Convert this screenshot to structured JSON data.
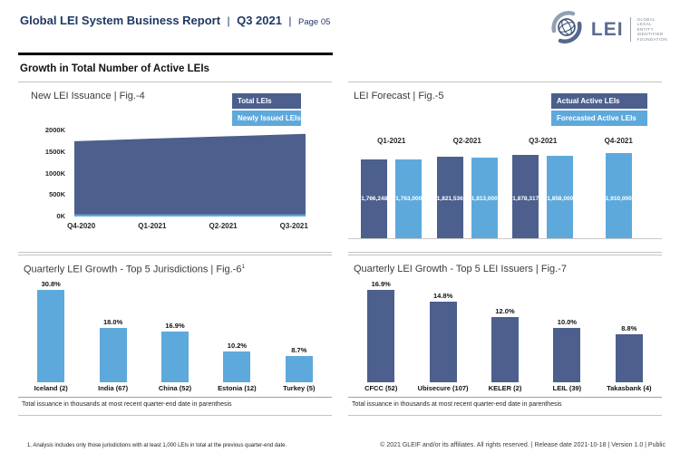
{
  "header": {
    "title": "Global LEI System Business Report",
    "separator": "|",
    "quarter": "Q3 2021",
    "page_label": "Page 05"
  },
  "logo": {
    "lei_text": "LEI",
    "caption": [
      "GLOBAL",
      "LEGAL",
      "ENTITY",
      "IDENTIFIER",
      "FOUNDATION"
    ]
  },
  "section_title": "Growth in Total Number of Active LEIs",
  "colors": {
    "navy_text": "#1F3864",
    "dark_blue": "#4C5F8D",
    "light_blue": "#5EA9DC"
  },
  "chart_data": [
    {
      "id": "fig4",
      "type": "area",
      "title": "New LEI Issuance | Fig.-4",
      "legend": [
        {
          "label": "Total LEIs",
          "color": "#4C5F8D"
        },
        {
          "label": "Newly Issued LEIs",
          "color": "#5EA9DC"
        }
      ],
      "x": [
        "Q4-2020",
        "Q1-2021",
        "Q2-2021",
        "Q3-2021"
      ],
      "series": [
        {
          "name": "Total LEIs",
          "values_k": [
            1750,
            1810,
            1865,
            1920
          ]
        },
        {
          "name": "Newly Issued LEIs",
          "values_k": [
            50,
            50,
            50,
            50
          ]
        }
      ],
      "yticks": [
        "2000K",
        "1500K",
        "1000K",
        "500K",
        "0K"
      ],
      "ylim_k": [
        0,
        2000
      ],
      "grid": false,
      "legend_position": "top-right"
    },
    {
      "id": "fig5",
      "type": "bar",
      "title": "LEI Forecast | Fig.-5",
      "legend": [
        {
          "label": "Actual Active LEIs",
          "color": "#4C5F8D"
        },
        {
          "label": "Forecasted Active LEIs",
          "color": "#5EA9DC"
        }
      ],
      "categories": [
        "Q1-2021",
        "Q2-2021",
        "Q3-2021",
        "Q4-2021"
      ],
      "series": [
        {
          "name": "Actual Active LEIs",
          "values": [
            1766248,
            1821536,
            1878317,
            null
          ],
          "labels": [
            "1,766,248",
            "1,821,536",
            "1,878,317",
            null
          ]
        },
        {
          "name": "Forecasted Active LEIs",
          "values": [
            1763000,
            1813000,
            1858000,
            1910000
          ],
          "labels": [
            "1,763,000",
            "1,813,000",
            "1,858,000",
            "1,910,000"
          ]
        }
      ],
      "ylim": [
        0,
        1950000
      ],
      "grid": false,
      "legend_position": "top-right"
    },
    {
      "id": "fig6",
      "type": "bar",
      "title": "Quarterly LEI Growth - Top 5 Jurisdictions | Fig.-6",
      "title_sup": "1",
      "bar_color": "#5EA9DC",
      "categories": [
        "Iceland (2)",
        "India (67)",
        "China (52)",
        "Estonia (12)",
        "Turkey (5)"
      ],
      "values_percent": [
        30.8,
        18.0,
        16.9,
        10.2,
        8.7
      ],
      "labels": [
        "30.8%",
        "18.0%",
        "16.9%",
        "10.2%",
        "8.7%"
      ],
      "note": "Total issuance in thousands at most recent quarter-end date in parenthesis",
      "grid": false
    },
    {
      "id": "fig7",
      "type": "bar",
      "title": "Quarterly LEI Growth - Top 5 LEI Issuers | Fig.-7",
      "bar_color": "#4C5F8D",
      "categories": [
        "CFCC (52)",
        "Ubisecure (107)",
        "KELER (2)",
        "LEIL (39)",
        "Takasbank (4)"
      ],
      "values_percent": [
        16.9,
        14.8,
        12.0,
        10.0,
        8.8
      ],
      "labels": [
        "16.9%",
        "14.8%",
        "12.0%",
        "10.0%",
        "8.8%"
      ],
      "note": "Total issuance in thousands at most recent quarter-end date in parenthesis",
      "grid": false
    }
  ],
  "footnote": "1. Analysis includes only those jurisdictions with at least 1,000 LEIs in total at the previous quarter-end date.",
  "footer_text": "© 2021 GLEIF and/or its affiliates. All rights reserved.  | Release date 2021-10-18 | Version 1.0 | Public"
}
